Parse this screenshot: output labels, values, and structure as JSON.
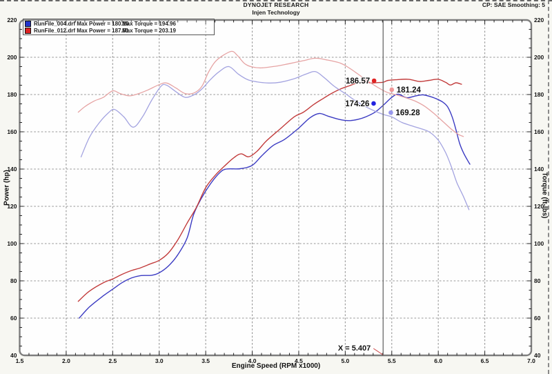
{
  "header": {
    "title": "DYNOJET RESEARCH",
    "subtitle": "Injen Technology",
    "right_info": "CP: SAE  Smoothing: 5"
  },
  "legend": {
    "runs": [
      {
        "swatch_color": "#2233cc",
        "file_and_power": "RunFile_004.drf Max Power = 180.16",
        "torque": "Max Torque = 194.96"
      },
      {
        "swatch_color": "#dd2222",
        "file_and_power": "RunFile_012.drf Max Power = 187.51",
        "torque": "Max Torque = 203.19"
      }
    ]
  },
  "axes": {
    "x_label": "Engine Speed (RPM x1000)",
    "y_left_label": "Power (hp)",
    "y_right_label": "Torque (ft-lbs)",
    "x_ticks": [
      "1.5",
      "2.0",
      "2.5",
      "3.0",
      "3.5",
      "4.0",
      "4.5",
      "5.0",
      "5.5",
      "6.0",
      "6.5",
      "7.0"
    ],
    "y_ticks": [
      "220",
      "200",
      "180",
      "160",
      "140",
      "120",
      "100",
      "80",
      "60",
      "40"
    ]
  },
  "cursor": {
    "label": "X = 5.407",
    "rpm": 5.407
  },
  "markers": [
    {
      "label": "186.57",
      "rpm": 5.31,
      "value": 187.4,
      "color": "#e02222",
      "side": "left"
    },
    {
      "label": "181.24",
      "rpm": 5.5,
      "value": 182.6,
      "color": "#f09898",
      "side": "right"
    },
    {
      "label": "174.26",
      "rpm": 5.305,
      "value": 175.2,
      "color": "#2222e0",
      "side": "left"
    },
    {
      "label": "169.28",
      "rpm": 5.49,
      "value": 170.3,
      "color": "#9898ee",
      "side": "right"
    }
  ],
  "chart_data": {
    "type": "line",
    "title": "DYNOJET RESEARCH - Injen Technology",
    "xlabel": "Engine Speed (RPM x1000)",
    "ylabel_left": "Power (hp)",
    "ylabel_right": "Torque (ft-lbs)",
    "xlim": [
      1.5,
      7.0
    ],
    "ylim": [
      40,
      220
    ],
    "grid": true,
    "cursor_rpm": 5.407,
    "cursor_values": {
      "power_red": 186.57,
      "torque_red": 181.24,
      "power_blue": 174.26,
      "torque_blue": 169.28
    },
    "series": [
      {
        "name": "power-runfile004-blue",
        "axis": "power",
        "max": 180.16,
        "color": "#3a3ac2",
        "width": 1.4,
        "points": [
          [
            2.14,
            60
          ],
          [
            2.25,
            66
          ],
          [
            2.4,
            72
          ],
          [
            2.5,
            75.5
          ],
          [
            2.6,
            79
          ],
          [
            2.7,
            81.5
          ],
          [
            2.8,
            82.8
          ],
          [
            2.92,
            83
          ],
          [
            3.0,
            84.3
          ],
          [
            3.1,
            88
          ],
          [
            3.2,
            94
          ],
          [
            3.3,
            103
          ],
          [
            3.37,
            115.6
          ],
          [
            3.45,
            124
          ],
          [
            3.55,
            132
          ],
          [
            3.65,
            138
          ],
          [
            3.72,
            140
          ],
          [
            3.87,
            140.2
          ],
          [
            4.0,
            142
          ],
          [
            4.1,
            147
          ],
          [
            4.22,
            152.5
          ],
          [
            4.35,
            156
          ],
          [
            4.5,
            162
          ],
          [
            4.62,
            167.5
          ],
          [
            4.72,
            169.8
          ],
          [
            4.82,
            168.3
          ],
          [
            4.94,
            166.6
          ],
          [
            5.04,
            166
          ],
          [
            5.13,
            166.6
          ],
          [
            5.22,
            168
          ],
          [
            5.32,
            170.5
          ],
          [
            5.41,
            174.3
          ],
          [
            5.5,
            178.5
          ],
          [
            5.57,
            180.2
          ],
          [
            5.66,
            178.3
          ],
          [
            5.76,
            179.3
          ],
          [
            5.84,
            179.8
          ],
          [
            5.92,
            178.8
          ],
          [
            5.98,
            177.7
          ],
          [
            6.05,
            175.9
          ],
          [
            6.1,
            173.4
          ],
          [
            6.15,
            167.9
          ],
          [
            6.19,
            161.1
          ],
          [
            6.23,
            153.7
          ],
          [
            6.27,
            148.8
          ],
          [
            6.31,
            145.1
          ],
          [
            6.34,
            142.6
          ]
        ]
      },
      {
        "name": "power-runfile012-red",
        "axis": "power",
        "max": 187.51,
        "color": "#c23b3b",
        "width": 1.4,
        "points": [
          [
            2.13,
            69
          ],
          [
            2.25,
            74.5
          ],
          [
            2.4,
            79
          ],
          [
            2.5,
            81
          ],
          [
            2.6,
            83.5
          ],
          [
            2.7,
            85.5
          ],
          [
            2.8,
            87
          ],
          [
            2.9,
            89
          ],
          [
            3.0,
            91
          ],
          [
            3.1,
            95
          ],
          [
            3.2,
            102
          ],
          [
            3.3,
            111
          ],
          [
            3.4,
            119.5
          ],
          [
            3.5,
            130
          ],
          [
            3.6,
            136.5
          ],
          [
            3.7,
            141.5
          ],
          [
            3.8,
            146
          ],
          [
            3.88,
            148.2
          ],
          [
            3.96,
            146.6
          ],
          [
            4.05,
            149.5
          ],
          [
            4.15,
            155
          ],
          [
            4.3,
            161.5
          ],
          [
            4.45,
            168
          ],
          [
            4.55,
            170.5
          ],
          [
            4.66,
            174.6
          ],
          [
            4.75,
            177.5
          ],
          [
            4.85,
            180.5
          ],
          [
            4.95,
            183
          ],
          [
            5.05,
            184.8
          ],
          [
            5.13,
            186.3
          ],
          [
            5.21,
            186.9
          ],
          [
            5.28,
            186.2
          ],
          [
            5.35,
            186.4
          ],
          [
            5.41,
            186.6
          ],
          [
            5.46,
            187.6
          ],
          [
            5.56,
            188
          ],
          [
            5.68,
            188.2
          ],
          [
            5.8,
            187
          ],
          [
            5.9,
            187.6
          ],
          [
            6.0,
            188.2
          ],
          [
            6.08,
            186.5
          ],
          [
            6.13,
            185.1
          ],
          [
            6.19,
            186.3
          ],
          [
            6.25,
            185.5
          ]
        ]
      },
      {
        "name": "torque-runfile004-lightblue",
        "axis": "torque",
        "max": 194.96,
        "color": "#a3a3e0",
        "width": 1.3,
        "points": [
          [
            2.16,
            146.5
          ],
          [
            2.25,
            157
          ],
          [
            2.35,
            164.5
          ],
          [
            2.45,
            170
          ],
          [
            2.52,
            172
          ],
          [
            2.62,
            168
          ],
          [
            2.72,
            162.5
          ],
          [
            2.82,
            168
          ],
          [
            2.92,
            177
          ],
          [
            3.02,
            184.5
          ],
          [
            3.08,
            185
          ],
          [
            3.18,
            181.5
          ],
          [
            3.28,
            178.5
          ],
          [
            3.38,
            180
          ],
          [
            3.46,
            183
          ],
          [
            3.55,
            188
          ],
          [
            3.65,
            192.5
          ],
          [
            3.75,
            195
          ],
          [
            3.85,
            191
          ],
          [
            3.95,
            188
          ],
          [
            4.05,
            186.8
          ],
          [
            4.18,
            186.2
          ],
          [
            4.3,
            186.6
          ],
          [
            4.45,
            188.5
          ],
          [
            4.58,
            191
          ],
          [
            4.68,
            192.3
          ],
          [
            4.78,
            188.8
          ],
          [
            4.88,
            184.5
          ],
          [
            5.0,
            180.5
          ],
          [
            5.1,
            177
          ],
          [
            5.2,
            174
          ],
          [
            5.3,
            171.5
          ],
          [
            5.41,
            169.3
          ],
          [
            5.5,
            168
          ],
          [
            5.61,
            165
          ],
          [
            5.76,
            162.5
          ],
          [
            5.9,
            160
          ],
          [
            6.0,
            155.5
          ],
          [
            6.08,
            148.7
          ],
          [
            6.14,
            141.3
          ],
          [
            6.2,
            132.7
          ],
          [
            6.27,
            125.3
          ],
          [
            6.33,
            118.2
          ]
        ]
      },
      {
        "name": "torque-runfile012-lightred",
        "axis": "torque",
        "max": 203.19,
        "color": "#e6a3a3",
        "width": 1.3,
        "points": [
          [
            2.13,
            170.5
          ],
          [
            2.2,
            173.5
          ],
          [
            2.3,
            176.5
          ],
          [
            2.4,
            178.5
          ],
          [
            2.5,
            182
          ],
          [
            2.58,
            180.5
          ],
          [
            2.68,
            179.3
          ],
          [
            2.78,
            180.5
          ],
          [
            2.88,
            182.5
          ],
          [
            3.0,
            185.3
          ],
          [
            3.08,
            186.2
          ],
          [
            3.18,
            183.5
          ],
          [
            3.28,
            180.5
          ],
          [
            3.38,
            181
          ],
          [
            3.46,
            184.5
          ],
          [
            3.53,
            192
          ],
          [
            3.6,
            197.5
          ],
          [
            3.68,
            200.8
          ],
          [
            3.78,
            203.2
          ],
          [
            3.84,
            201
          ],
          [
            3.92,
            196.5
          ],
          [
            4.0,
            194.8
          ],
          [
            4.1,
            194.3
          ],
          [
            4.25,
            195.2
          ],
          [
            4.4,
            196.6
          ],
          [
            4.55,
            198.2
          ],
          [
            4.68,
            199.5
          ],
          [
            4.8,
            198.6
          ],
          [
            4.95,
            196.8
          ],
          [
            5.05,
            194
          ],
          [
            5.15,
            190.5
          ],
          [
            5.25,
            187
          ],
          [
            5.35,
            183.8
          ],
          [
            5.45,
            181.2
          ],
          [
            5.55,
            179.8
          ],
          [
            5.65,
            178.3
          ],
          [
            5.75,
            176.5
          ],
          [
            5.85,
            173.8
          ],
          [
            5.95,
            170
          ],
          [
            6.05,
            165.5
          ],
          [
            6.15,
            161
          ],
          [
            6.22,
            158.5
          ],
          [
            6.27,
            157.5
          ]
        ]
      }
    ]
  },
  "colors": {
    "grid": "#969696",
    "frame": "#7e7e7e",
    "cursor": "#5c5c5c",
    "tick": "#222222",
    "callout": "#cc4444",
    "plot_bg": "#fefefe",
    "text": "#111111"
  }
}
